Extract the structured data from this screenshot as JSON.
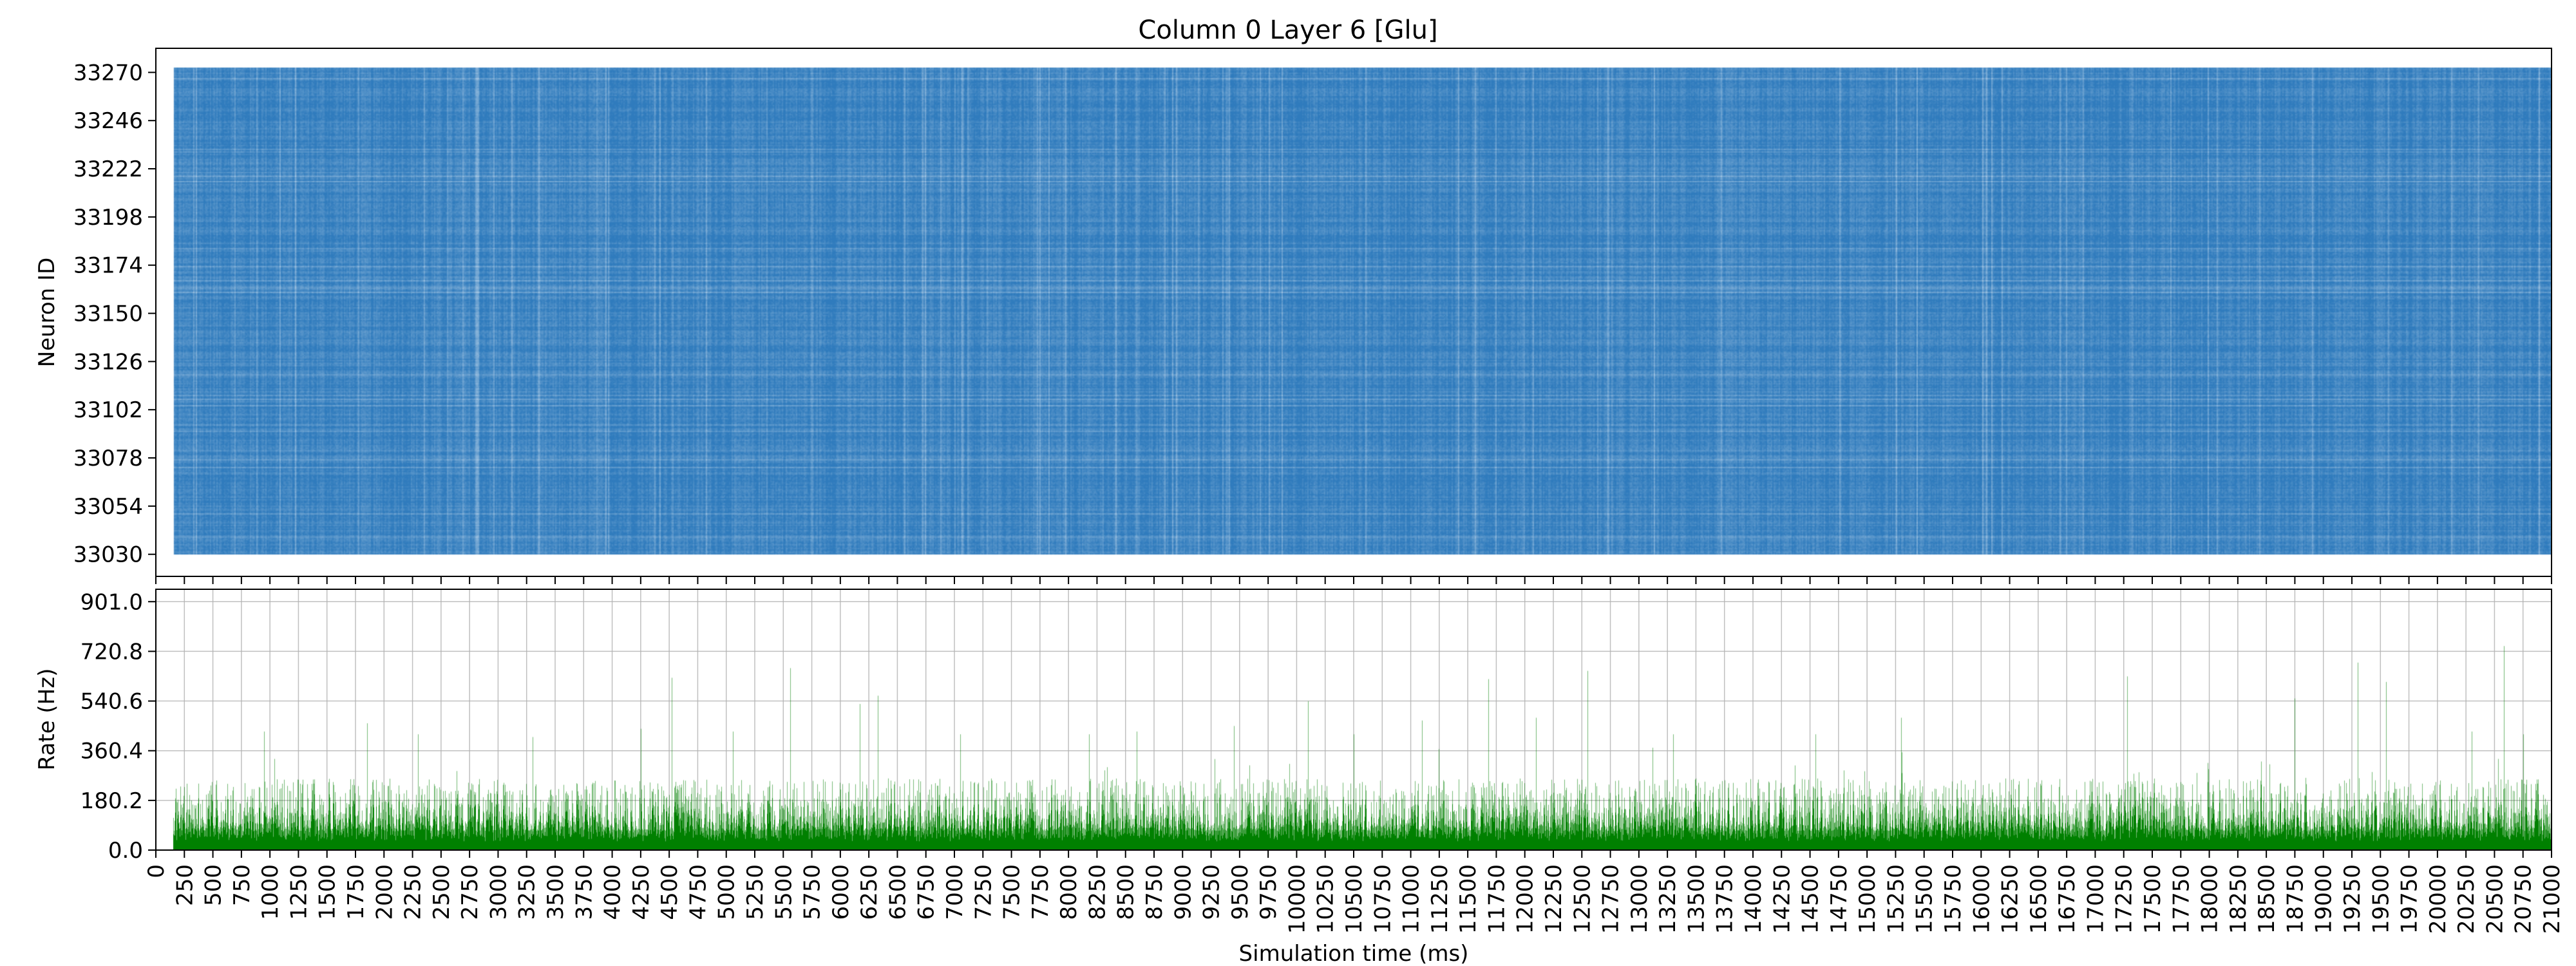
{
  "chart_data": [
    {
      "type": "raster",
      "title": "Column 0 Layer 6 [Glu]",
      "ylabel": "Neuron ID",
      "xlim": [
        0,
        21000
      ],
      "ylim": [
        33019,
        33282
      ],
      "neuron_id_range": [
        33030,
        33273
      ],
      "spike_time_range_ms": [
        150,
        21000
      ],
      "yticks": [
        33030,
        33054,
        33078,
        33102,
        33126,
        33150,
        33174,
        33198,
        33222,
        33246,
        33270
      ],
      "grid": false,
      "color": "#2f7bbd",
      "sharex_with": "rate"
    },
    {
      "type": "histogram",
      "xlabel": "Simulation time (ms)",
      "ylabel": "Rate (Hz)",
      "xlim": [
        0,
        21000
      ],
      "ylim": [
        0,
        946
      ],
      "yticks": [
        "0.0",
        "180.2",
        "360.4",
        "540.6",
        "720.8",
        "901.0"
      ],
      "xticks_step": 250,
      "grid": true,
      "color": "#008000",
      "baseline_rate_hz": [
        70,
        260
      ],
      "start_ms": 150,
      "peaks": [
        {
          "x": 950,
          "y": 430
        },
        {
          "x": 1850,
          "y": 460
        },
        {
          "x": 2300,
          "y": 420
        },
        {
          "x": 3300,
          "y": 410
        },
        {
          "x": 4250,
          "y": 440
        },
        {
          "x": 4520,
          "y": 625
        },
        {
          "x": 5060,
          "y": 430
        },
        {
          "x": 5560,
          "y": 660
        },
        {
          "x": 6170,
          "y": 530
        },
        {
          "x": 6330,
          "y": 560
        },
        {
          "x": 7050,
          "y": 420
        },
        {
          "x": 8180,
          "y": 420
        },
        {
          "x": 8600,
          "y": 430
        },
        {
          "x": 9450,
          "y": 450
        },
        {
          "x": 10100,
          "y": 540
        },
        {
          "x": 10500,
          "y": 420
        },
        {
          "x": 11100,
          "y": 470
        },
        {
          "x": 11680,
          "y": 620
        },
        {
          "x": 12100,
          "y": 480
        },
        {
          "x": 12550,
          "y": 650
        },
        {
          "x": 13300,
          "y": 420
        },
        {
          "x": 14550,
          "y": 420
        },
        {
          "x": 15300,
          "y": 480
        },
        {
          "x": 17280,
          "y": 630
        },
        {
          "x": 18750,
          "y": 550
        },
        {
          "x": 19300,
          "y": 680
        },
        {
          "x": 19550,
          "y": 610
        },
        {
          "x": 20300,
          "y": 430
        },
        {
          "x": 20580,
          "y": 740
        },
        {
          "x": 20750,
          "y": 420
        }
      ]
    }
  ]
}
